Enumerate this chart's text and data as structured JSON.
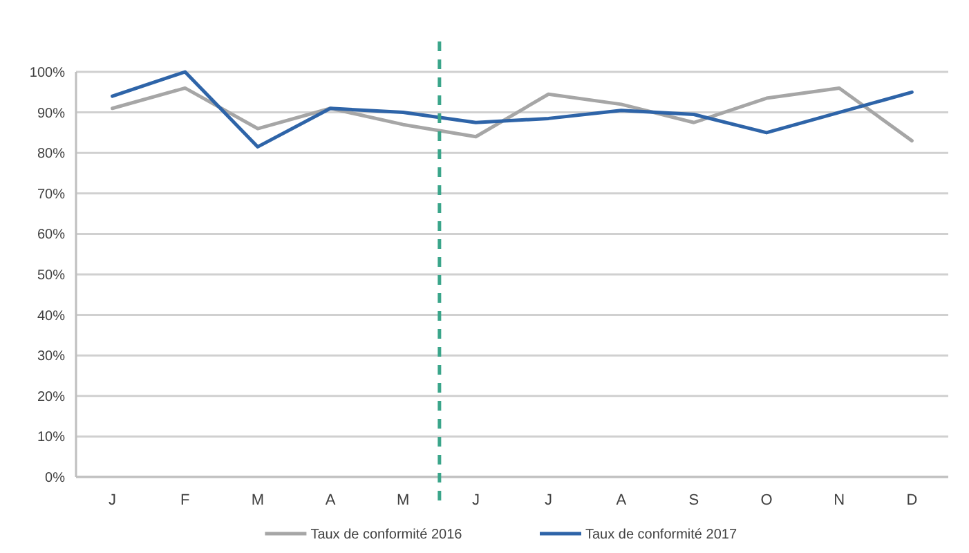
{
  "chart_data": {
    "type": "line",
    "categories": [
      "J",
      "F",
      "M",
      "A",
      "M",
      "J",
      "J",
      "A",
      "S",
      "O",
      "N",
      "D"
    ],
    "ylim": [
      0,
      100
    ],
    "yticks": [
      {
        "value": 0,
        "label": "0%"
      },
      {
        "value": 10,
        "label": "10%"
      },
      {
        "value": 20,
        "label": "20%"
      },
      {
        "value": 30,
        "label": "30%"
      },
      {
        "value": 40,
        "label": "40%"
      },
      {
        "value": 50,
        "label": "50%"
      },
      {
        "value": 60,
        "label": "60%"
      },
      {
        "value": 70,
        "label": "70%"
      },
      {
        "value": 80,
        "label": "80%"
      },
      {
        "value": 90,
        "label": "90%"
      },
      {
        "value": 100,
        "label": "100%"
      }
    ],
    "series": [
      {
        "name": "Taux de conformité 2016",
        "color": "#a6a6a6",
        "values": [
          91,
          96,
          86,
          91,
          87,
          84,
          94.5,
          92,
          87.5,
          93.5,
          96,
          83
        ]
      },
      {
        "name": "Taux de conformité 2017",
        "color": "#2e64a8",
        "values": [
          94,
          100,
          81.5,
          91,
          90,
          87.5,
          88.5,
          90.5,
          89.5,
          85,
          90,
          95
        ]
      }
    ],
    "grid": "y",
    "legend": "bottom",
    "marker": "none",
    "line_style": "solid"
  }
}
